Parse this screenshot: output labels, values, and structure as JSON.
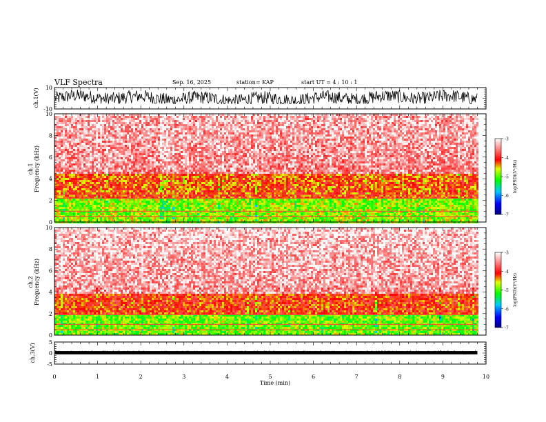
{
  "header": {
    "title": "VLF Spectra",
    "date": "Sep. 16, 2025",
    "station": "station= KAP",
    "start": "start  UT =   4 : 10 : 1"
  },
  "chart_data": [
    {
      "type": "line",
      "panel": "ch1-waveform",
      "ylabel": "ch.1(V)",
      "ylim": [
        -10,
        10
      ],
      "yticks_labeled": [
        "10",
        "-10"
      ],
      "xlim": [
        0,
        10
      ],
      "signal_range": [
        -5,
        8
      ],
      "extends_to": 9.8
    },
    {
      "type": "heatmap",
      "panel": "ch1-spectrogram",
      "ylabel_line1": "ch.1",
      "ylabel_line2": "Frequency (kHz)",
      "ylim": [
        0,
        10
      ],
      "yticks": [
        "0",
        "2",
        "4",
        "6",
        "8",
        "10"
      ],
      "xlim": [
        0,
        10
      ],
      "extends_to": 9.8,
      "bands": [
        {
          "low": 0,
          "high": 2.2,
          "level": -4.8
        },
        {
          "low": 2.2,
          "high": 4.5,
          "level": -4.2
        },
        {
          "low": 4.5,
          "high": 10,
          "level": -3.5
        }
      ],
      "lines_khz": [
        0.5,
        1.0,
        2.2,
        2.5
      ]
    },
    {
      "type": "heatmap",
      "panel": "ch2-spectrogram",
      "ylabel_line1": "ch.2",
      "ylabel_line2": "Frequency (kHz)",
      "ylim": [
        0,
        10
      ],
      "yticks": [
        "0",
        "2",
        "4",
        "6",
        "8",
        "10"
      ],
      "xlim": [
        0,
        10
      ],
      "extends_to": 9.8,
      "bands": [
        {
          "low": 0,
          "high": 2.0,
          "level": -4.9
        },
        {
          "low": 2.0,
          "high": 4.0,
          "level": -4.1
        },
        {
          "low": 4.0,
          "high": 10,
          "level": -3.4
        }
      ],
      "lines_khz": [
        0.5,
        1.0,
        1.9
      ]
    },
    {
      "type": "line",
      "panel": "ch3-waveform",
      "ylabel": "ch.3(V)",
      "ylim": [
        -5,
        5
      ],
      "yticks_labeled": [
        "5",
        "0",
        "-5"
      ],
      "xlim": [
        0,
        10
      ],
      "signal_range": [
        -0.6,
        0.6
      ],
      "extends_to": 9.8
    }
  ],
  "xaxis": {
    "label": "Time (min)",
    "ticks": [
      "0",
      "1",
      "2",
      "3",
      "4",
      "5",
      "6",
      "7",
      "8",
      "9",
      "10"
    ]
  },
  "colorbar": {
    "label": "log(PSD)(V²/Hz)",
    "ticks": [
      "-3",
      "-4",
      "-5",
      "-6",
      "-7"
    ],
    "range": [
      -7,
      -3
    ],
    "stops": [
      "#000080",
      "#0000ff",
      "#00c8ff",
      "#00ff00",
      "#c8ff00",
      "#ff0000",
      "#ff8080",
      "#ffffff"
    ]
  }
}
